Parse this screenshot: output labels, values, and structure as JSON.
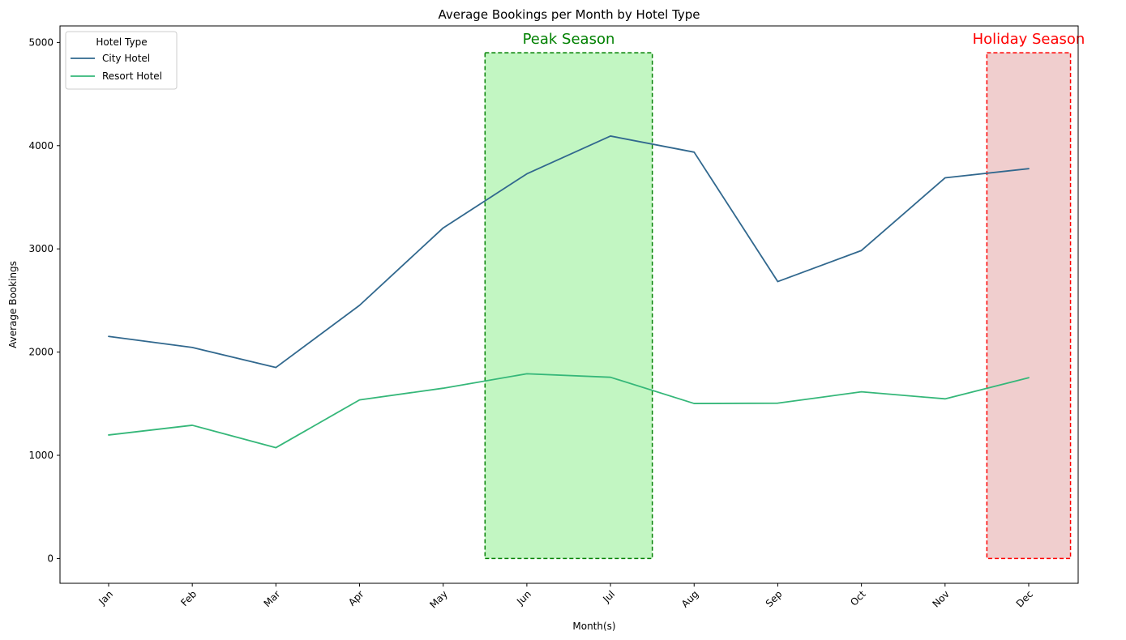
{
  "chart_data": {
    "type": "line",
    "title": "Average Bookings per Month by Hotel Type",
    "xlabel": "Month(s)",
    "ylabel": "Average Bookings",
    "categories": [
      "Jan",
      "Feb",
      "Mar",
      "Apr",
      "May",
      "Jun",
      "Jul",
      "Aug",
      "Sep",
      "Oct",
      "Nov",
      "Dec"
    ],
    "ylim": [
      -240,
      5160
    ],
    "yticks": [
      0,
      1000,
      2000,
      3000,
      4000,
      5000
    ],
    "grid": false,
    "legend": {
      "title": "Hotel Type",
      "placement": "top-left"
    },
    "series": [
      {
        "name": "City Hotel",
        "color": "#31688e",
        "values": [
          2152,
          2045,
          1851,
          2453,
          3203,
          3727,
          4093,
          3937,
          2683,
          2984,
          3688,
          3777
        ]
      },
      {
        "name": "Resort Hotel",
        "color": "#35b779",
        "values": [
          1197,
          1291,
          1074,
          1537,
          1650,
          1790,
          1756,
          1502,
          1505,
          1615,
          1547,
          1752
        ]
      }
    ],
    "annotations": [
      {
        "label": "Peak Season",
        "x_start": 4.5,
        "x_end": 6.5,
        "y_start": 0,
        "y_end": 4900,
        "fill": "#90ee90",
        "fill_opacity": 0.55,
        "edge": "#008000",
        "text_color": "#008000"
      },
      {
        "label": "Holiday Season",
        "x_start": 10.5,
        "x_end": 11.5,
        "y_start": 0,
        "y_end": 4900,
        "fill": "#d98585",
        "fill_opacity": 0.4,
        "edge": "#ff0000",
        "text_color": "#ff0000"
      }
    ]
  }
}
